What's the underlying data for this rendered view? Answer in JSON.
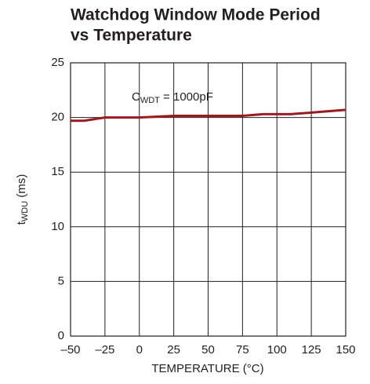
{
  "chart_data": {
    "type": "line",
    "title": [
      "Watchdog Window Mode Period",
      "vs Temperature"
    ],
    "xlabel": "TEMPERATURE (°C)",
    "ylabel": {
      "base": "t",
      "sub": "WDU",
      "rest": " (ms)"
    },
    "annotation": {
      "base": "C",
      "sub": "WDT",
      "rest": " = 1000pF"
    },
    "x": [
      -50,
      -40,
      -25,
      0,
      25,
      50,
      75,
      90,
      110,
      125,
      150
    ],
    "series": [
      {
        "name": "tWDU",
        "color": "#9b1c20",
        "values": [
          19.7,
          19.7,
          20.0,
          20.0,
          20.15,
          20.15,
          20.15,
          20.3,
          20.3,
          20.45,
          20.7
        ]
      }
    ],
    "xlim": [
      -50,
      150
    ],
    "xticks": [
      {
        "value": -50,
        "label": "–50"
      },
      {
        "value": -25,
        "label": "–25"
      },
      0,
      25,
      50,
      75,
      100,
      125,
      150
    ],
    "ylim": [
      0,
      25
    ],
    "yticks": [
      0,
      5,
      10,
      15,
      20,
      25
    ],
    "grid": true
  }
}
